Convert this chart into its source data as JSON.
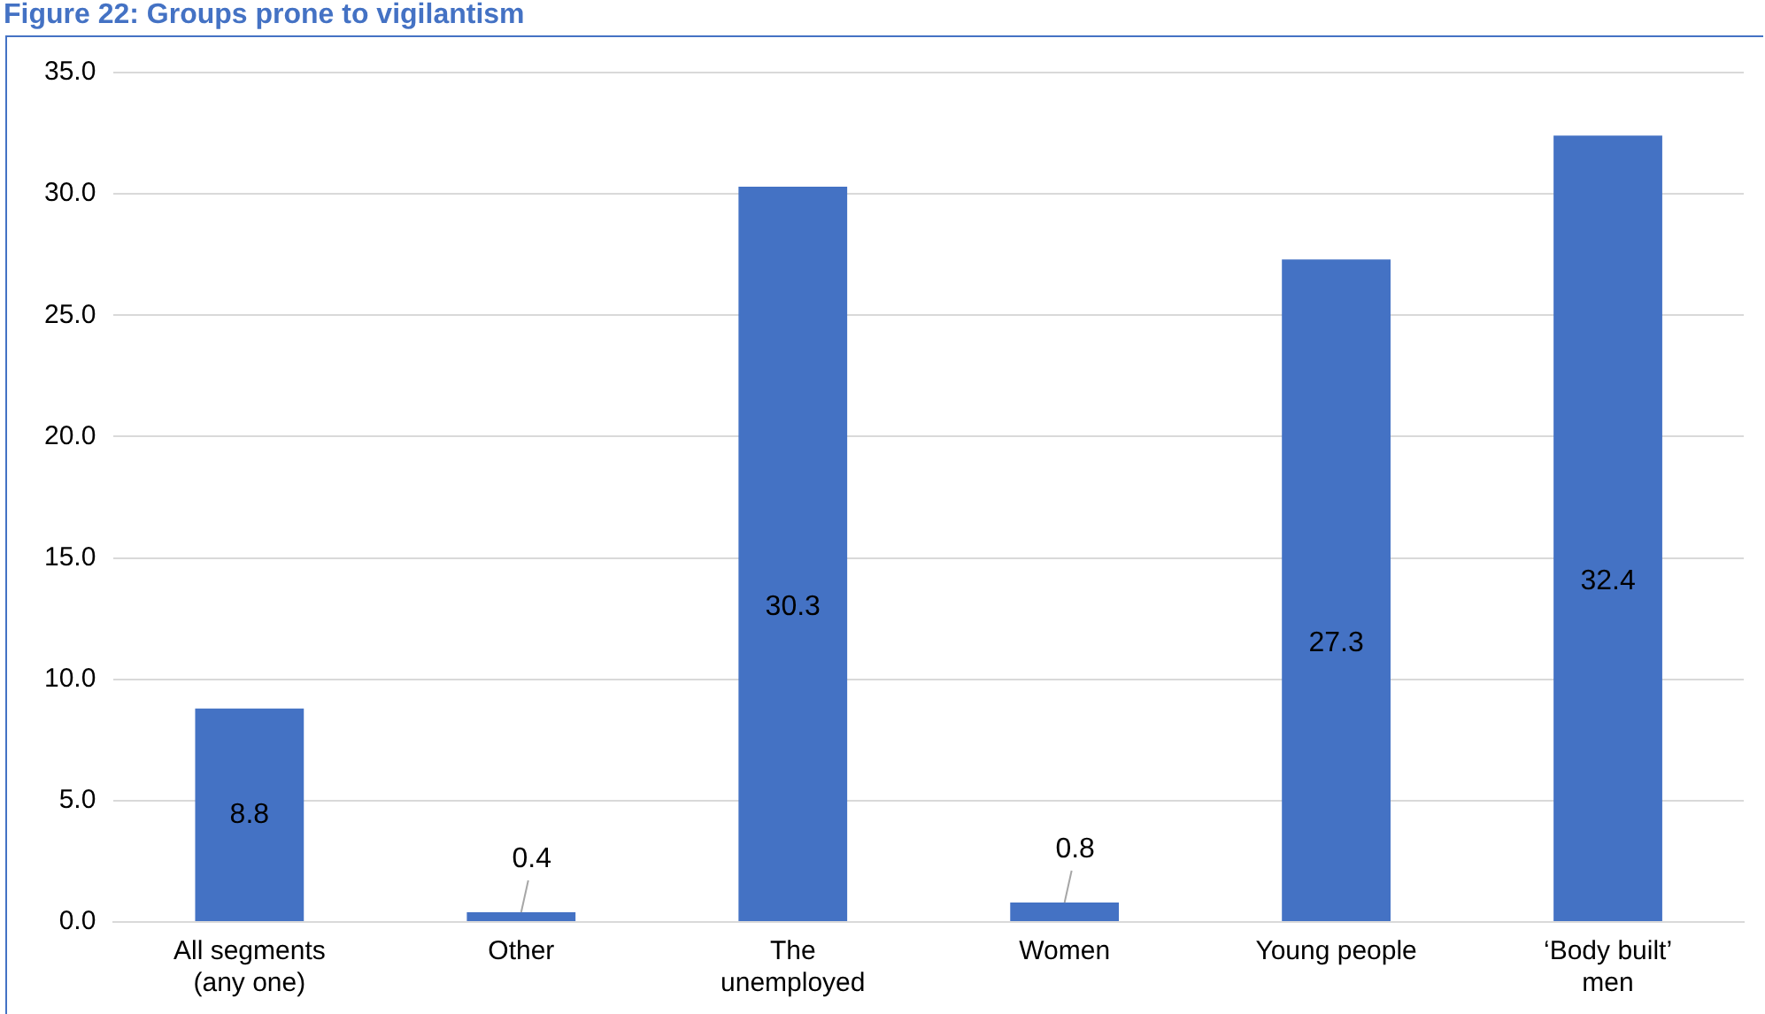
{
  "chart_data": {
    "type": "bar",
    "title": "Figure 22: Groups prone to vigilantism",
    "categories": [
      "All segments (any one)",
      "Other",
      "The unemployed",
      "Women",
      "Young people",
      "‘Body built’ men"
    ],
    "values": [
      8.8,
      0.4,
      30.3,
      0.8,
      27.3,
      32.4
    ],
    "color": "#4472c4",
    "ylim": [
      0,
      35
    ],
    "yticks": [
      {
        "value": 0,
        "label": "0.0"
      },
      {
        "value": 5,
        "label": "5.0"
      },
      {
        "value": 10,
        "label": "10.0"
      },
      {
        "value": 15,
        "label": "15.0"
      },
      {
        "value": 20,
        "label": "20.0"
      },
      {
        "value": 25,
        "label": "25.0"
      },
      {
        "value": 30,
        "label": "30.0"
      },
      {
        "value": 35,
        "label": "35.0"
      }
    ],
    "grid": "y",
    "data_labels": true,
    "legend": false
  }
}
